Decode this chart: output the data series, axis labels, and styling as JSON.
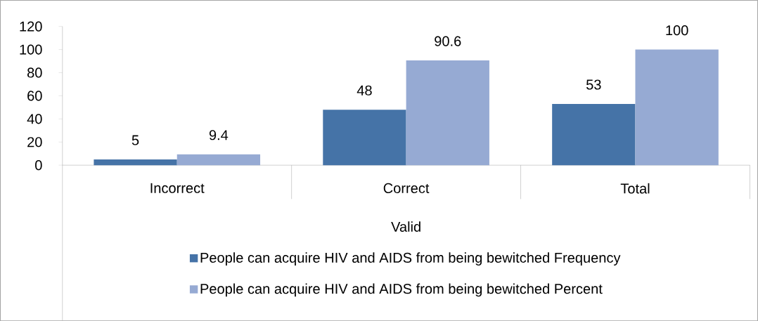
{
  "chart_data": {
    "type": "bar",
    "categories": [
      "Incorrect",
      "Correct",
      "Total"
    ],
    "xlabel": "Valid",
    "series": [
      {
        "name": "People can acquire HIV and AIDS from being bewitched Frequency",
        "color": "#4573a7",
        "values": [
          5,
          48,
          53
        ]
      },
      {
        "name": "People can acquire HIV and AIDS from being bewitched Percent",
        "color": "#96aad3",
        "values": [
          9.4,
          90.6,
          100
        ]
      }
    ],
    "ylim": [
      0,
      120
    ],
    "yticks": [
      0,
      20,
      40,
      60,
      80,
      100,
      120
    ],
    "data_labels": true,
    "legend": "bottom",
    "grid": false
  }
}
